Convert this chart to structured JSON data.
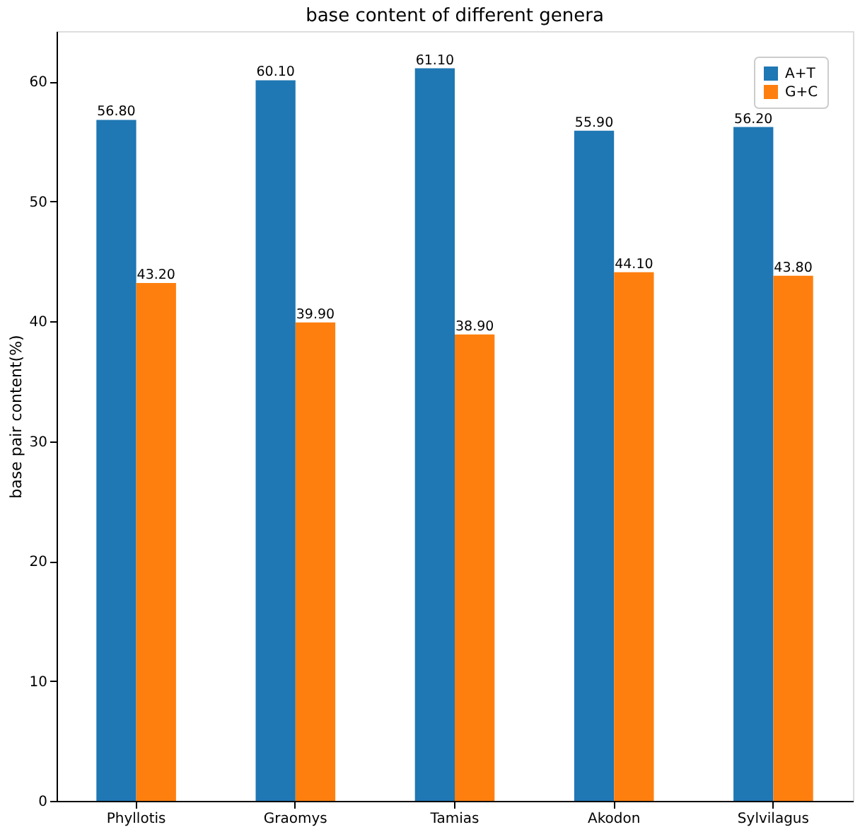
{
  "chart_data": {
    "type": "bar",
    "title": "base content of different genera",
    "ylabel": "base pair content(%)",
    "categories": [
      "Phyllotis",
      "Graomys",
      "Tamias",
      "Akodon",
      "Sylvilagus"
    ],
    "series": [
      {
        "name": "A+T",
        "color": "#1f77b4",
        "values": [
          56.8,
          60.1,
          61.1,
          55.9,
          56.2
        ],
        "value_labels": [
          "56.80",
          "60.10",
          "61.10",
          "55.90",
          "56.20"
        ]
      },
      {
        "name": "G+C",
        "color": "#ff7f0e",
        "values": [
          43.2,
          39.9,
          38.9,
          44.1,
          43.8
        ],
        "value_labels": [
          "43.20",
          "39.90",
          "38.90",
          "44.10",
          "43.80"
        ]
      }
    ],
    "ylim": [
      0,
      64.2
    ],
    "yticks": [
      0,
      10,
      20,
      30,
      40,
      50,
      60
    ],
    "grid": false,
    "legend": "top right"
  }
}
